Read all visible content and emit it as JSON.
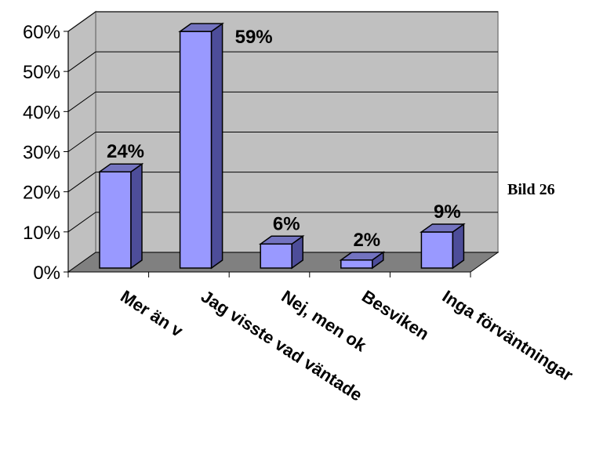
{
  "chart_data": {
    "type": "bar",
    "categories": [
      "Mer än v",
      "Jag visste vad väntade",
      "Nej, men ok",
      "Besviken",
      "Inga förväntningar"
    ],
    "values": [
      24,
      59,
      6,
      2,
      9
    ],
    "data_labels": [
      "24%",
      "59%",
      "6%",
      "2%",
      "9%"
    ],
    "ylim": [
      0,
      60
    ],
    "yticks": [
      0,
      10,
      20,
      30,
      40,
      50,
      60
    ],
    "ytick_labels": [
      "0%",
      "10%",
      "20%",
      "30%",
      "40%",
      "50%",
      "60%"
    ],
    "grid": true,
    "style": "3d-column",
    "colors": {
      "bar_front": "#9999ff",
      "bar_side": "#4d4d99",
      "bar_top": "#7373bf",
      "wall": "#c0c0c0",
      "floor": "#808080"
    }
  },
  "side_note": "Bild 26"
}
